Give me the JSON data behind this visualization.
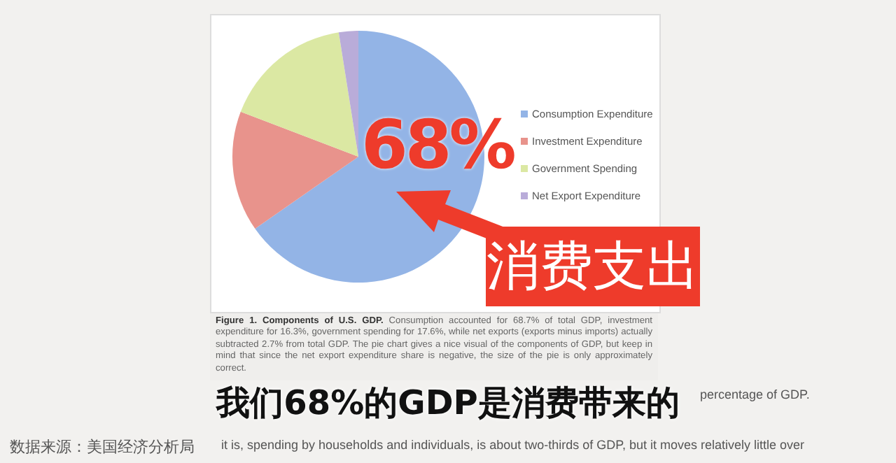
{
  "chart_data": {
    "type": "pie",
    "title": "Figure 1. Components of U.S. GDP.",
    "categories": [
      "Consumption Expenditure",
      "Investment Expenditure",
      "Government Spending",
      "Net Export Expenditure"
    ],
    "values": [
      65.3,
      15.5,
      16.7,
      2.5
    ],
    "colors": [
      "#93b4e6",
      "#e8938c",
      "#dbe8a3",
      "#b9acd9"
    ],
    "legend": "right",
    "annotations": [
      "68%",
      "消费支出",
      "Consumption accounted for 68.7% of total GDP, investment expenditure for 16.3%, government spending for 17.6%, while net exports (exports minus imports) actually subtracted 2.7% from total GDP. The pie chart gives a nice visual of the components of GDP, but keep in mind that since the net export expenditure share is negative, the size of the pie is only approximately correct.",
      "我们68%的GDP是消费带来的",
      "数据来源：美国经济分析局",
      "percentage of GDP.",
      "it is, spending by households and individuals, is about two-thirds of GDP, but it moves relatively little over"
    ]
  }
}
